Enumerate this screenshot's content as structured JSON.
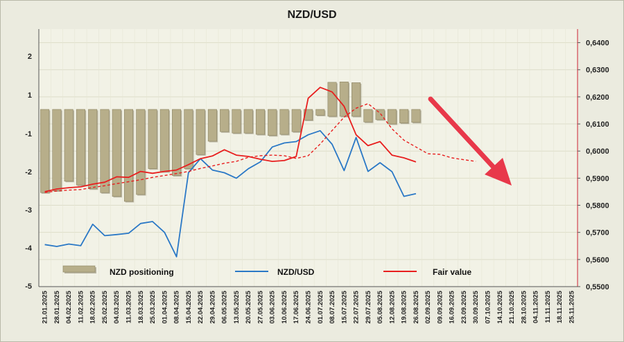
{
  "chart_data": {
    "type": "bar",
    "title": "NZD/USD",
    "left_axis": {
      "ticks": [
        "2",
        "1",
        "-1",
        "-2",
        "-3",
        "-4",
        "-5"
      ]
    },
    "right_axis": {
      "ticks": [
        "0,6400",
        "0,6300",
        "0,6200",
        "0,6100",
        "0,6000",
        "0,5900",
        "0,5800",
        "0,5700",
        "0,5600",
        "0,5500"
      ],
      "ylim": [
        0.55,
        0.645
      ]
    },
    "x_dates": [
      "21.01.2025",
      "28.01.2025",
      "04.02.2025",
      "11.02.2025",
      "18.02.2025",
      "25.02.2025",
      "04.03.2025",
      "11.03.2025",
      "18.03.2025",
      "25.03.2025",
      "01.04.2025",
      "08.04.2025",
      "15.04.2025",
      "22.04.2025",
      "29.04.2025",
      "06.05.2025",
      "13.05.2025",
      "20.05.2025",
      "27.05.2025",
      "03.06.2025",
      "10.06.2025",
      "17.06.2025",
      "24.06.2025",
      "01.07.2025",
      "08.07.2025",
      "15.07.2025",
      "22.07.2025",
      "29.07.2025",
      "05.08.2025",
      "12.08.2025",
      "19.08.2025",
      "26.08.2025",
      "02.09.2025",
      "09.09.2025",
      "16.09.2025",
      "23.09.2025",
      "30.09.2025",
      "07.10.2025",
      "14.10.2025",
      "21.10.2025",
      "28.10.2025",
      "04.11.2025",
      "11.11.2025",
      "18.11.2025",
      "25.11.2025"
    ],
    "series": [
      {
        "name": "NZD positioning",
        "kind": "bar",
        "color": "#b7ae8a",
        "values": [
          -2.55,
          -2.5,
          -2.25,
          -2.35,
          -2.45,
          -2.55,
          -2.65,
          -2.78,
          -2.6,
          -1.92,
          -2.0,
          -2.1,
          -1.92,
          -1.55,
          -1.2,
          -0.9,
          -0.97,
          -0.97,
          -1.02,
          -1.05,
          -1.02,
          -0.9,
          -0.3,
          -0.05,
          0.22,
          0.24,
          0.2,
          -0.4,
          -0.28,
          -0.5,
          -0.45,
          -0.42
        ]
      },
      {
        "name": "NZD/USD",
        "kind": "line",
        "color": "#2a78c6",
        "values": [
          0.5655,
          0.5648,
          0.5657,
          0.5651,
          0.573,
          0.5688,
          0.5692,
          0.5697,
          0.5733,
          0.574,
          0.57,
          0.561,
          0.592,
          0.5972,
          0.593,
          0.592,
          0.59,
          0.5935,
          0.596,
          0.6015,
          0.603,
          0.6035,
          0.606,
          0.6075,
          0.6025,
          0.5928,
          0.605,
          0.5925,
          0.5957,
          0.5924,
          0.5833,
          0.5843
        ]
      },
      {
        "name": "Fair value",
        "kind": "line",
        "color": "#e81e1e",
        "values": [
          0.585,
          0.586,
          0.5865,
          0.5868,
          0.5878,
          0.5885,
          0.5905,
          0.5903,
          0.5925,
          0.5918,
          0.5925,
          0.593,
          0.595,
          0.5972,
          0.5982,
          0.6005,
          0.5985,
          0.598,
          0.597,
          0.5962,
          0.5965,
          0.598,
          0.6195,
          0.6235,
          0.6218,
          0.6165,
          0.606,
          0.602,
          0.6035,
          0.5985,
          0.5975,
          0.596
        ]
      },
      {
        "name": "Fair value trend",
        "kind": "line",
        "color": "#e81e1e",
        "values": [
          0.5847,
          0.5853,
          0.5856,
          0.5858,
          0.5866,
          0.5872,
          0.588,
          0.5887,
          0.5894,
          0.5903,
          0.591,
          0.5917,
          0.5925,
          0.5936,
          0.5945,
          0.5955,
          0.5962,
          0.5977,
          0.5983,
          0.5985,
          0.5983,
          0.5973,
          0.5983,
          0.6026,
          0.6076,
          0.6125,
          0.6158,
          0.6175,
          0.614,
          0.6082,
          0.604,
          0.6015,
          0.599,
          0.5988,
          0.5975,
          0.5968,
          0.5962
        ]
      }
    ],
    "legend": [
      {
        "label": "NZD positioning",
        "type": "bar",
        "color": "#b7ae8a"
      },
      {
        "label": "NZD/USD",
        "type": "line",
        "color": "#2a78c6"
      },
      {
        "label": "Fair value",
        "type": "line",
        "color": "#e81e1e"
      }
    ],
    "annotation_arrow": {
      "color": "#e8384a",
      "direction": "down-right"
    },
    "grid": true,
    "legend_position": "bottom"
  }
}
